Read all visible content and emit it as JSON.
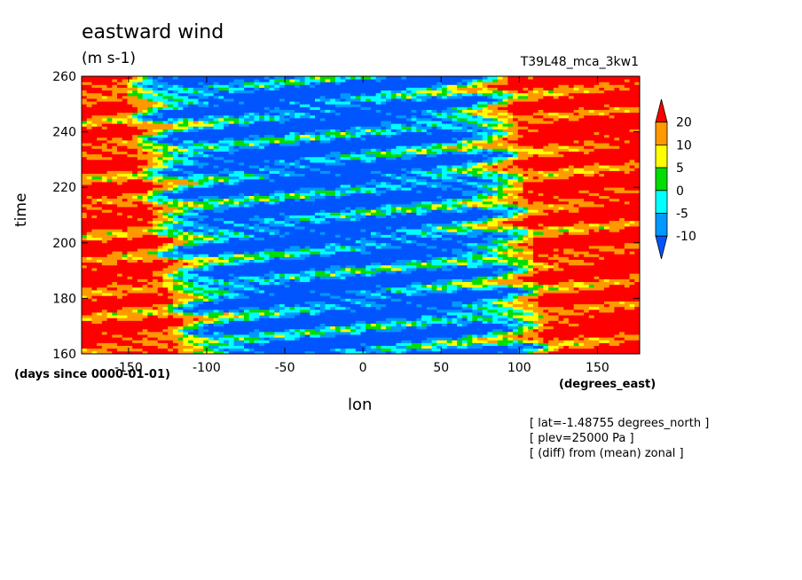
{
  "chart_data": {
    "type": "heatmap",
    "title": "eastward wind",
    "units": "(m s-1)",
    "run_label": "T39L48_mca_3kw1",
    "xlabel": "lon",
    "ylabel": "time",
    "x_units": "(degrees_east)",
    "y_units": "(days since 0000-01-01)",
    "xlim": [
      -180,
      177
    ],
    "ylim": [
      160,
      260
    ],
    "x_ticks": [
      -150,
      -100,
      -50,
      0,
      50,
      100,
      150
    ],
    "y_ticks": [
      160,
      180,
      200,
      220,
      240,
      260
    ],
    "colorbar": {
      "labels": [
        "20",
        "10",
        "5",
        "0",
        "-5",
        "-10"
      ],
      "colors": [
        "#ff0000",
        "#ff9900",
        "#ffff00",
        "#00dd00",
        "#00ffff",
        "#0099ff",
        "#0055ff"
      ]
    },
    "field_description": "Strong westerlies (>20) west of -120 and east of 120; easterlies (<-10) centered near -25 to 60; tilted bands of alternating anomalies",
    "annotations": [
      "[ lat=-1.48755 degrees_north ]",
      "[ plev=25000 Pa ]",
      "[ (diff) from (mean) zonal ]"
    ]
  }
}
